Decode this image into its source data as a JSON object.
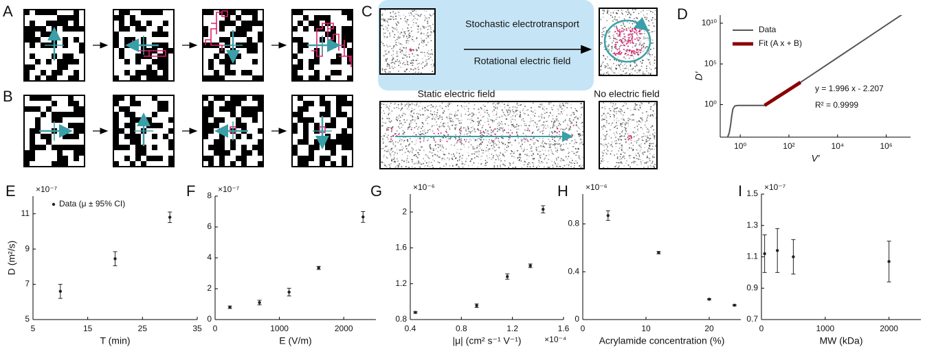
{
  "schematic": {
    "panels": [
      "A",
      "B",
      "C"
    ],
    "top_text": "Stochastic electrotransport",
    "arrow_text": "Rotational electric field",
    "static_text": "Static electric field",
    "none_text": "No electric field"
  },
  "chart_data": [
    {
      "type": "line",
      "label": "D",
      "xlabel": "V′",
      "ylabel": "D′",
      "xscale": "log",
      "yscale": "log",
      "xlim": [
        0.15,
        10000000
      ],
      "ylim": [
        0.0001,
        100000000000
      ],
      "xticks": [
        {
          "value": 1,
          "label": "10⁰"
        },
        {
          "value": 100,
          "label": "10²"
        },
        {
          "value": 10000,
          "label": "10⁴"
        },
        {
          "value": 1000000,
          "label": "10⁶"
        }
      ],
      "yticks": [
        {
          "value": 1,
          "label": "10⁰"
        },
        {
          "value": 100000,
          "label": "10⁵"
        },
        {
          "value": 10000000000,
          "label": "10¹⁰"
        }
      ],
      "legend": "upper left",
      "series": [
        {
          "name": "Data",
          "color": "#555555",
          "x": [
            0.3,
            0.35,
            0.4,
            0.45,
            0.5,
            0.6,
            0.8,
            1,
            2,
            5,
            10,
            30,
            100,
            1000,
            10000,
            100000,
            1000000,
            10000000
          ],
          "values": [
            0.0001,
            0.0003,
            0.003,
            0.05,
            0.3,
            0.7,
            0.8,
            0.8,
            0.8,
            0.8,
            0.8,
            10,
            61,
            6000,
            600000,
            59000000,
            5900000000,
            590000000000
          ]
        },
        {
          "name": "Fit (A x + B)",
          "color": "#8b0000",
          "x": [
            10,
            300
          ],
          "values": [
            0.8,
            550
          ]
        }
      ],
      "annotations": [
        "y = 1.996 x - 2.207",
        "R² = 0.9999"
      ]
    },
    {
      "type": "scatter",
      "label": "E",
      "xlabel": "T (min)",
      "ylabel": "D (m²/s)",
      "ymultiplier": "×10⁻⁷",
      "xlim": [
        5,
        35
      ],
      "ylim": [
        5,
        12
      ],
      "xticks": [
        5,
        15,
        25,
        35
      ],
      "yticks": [
        5,
        7,
        9,
        11
      ],
      "legend": "upper left",
      "series": [
        {
          "name": "Data (μ ± 95% CI)",
          "color": "#222222",
          "x": [
            10,
            20,
            30
          ],
          "values": [
            6.6,
            8.45,
            10.8
          ],
          "errors": [
            0.4,
            0.4,
            0.3
          ]
        }
      ]
    },
    {
      "type": "scatter",
      "label": "F",
      "xlabel": "E (V/m)",
      "ymultiplier": "×10⁻⁷",
      "xlim": [
        0,
        2500
      ],
      "ylim": [
        0,
        8
      ],
      "xticks": [
        0,
        1000,
        2000
      ],
      "yticks": [
        0,
        2,
        4,
        6,
        8
      ],
      "series": [
        {
          "color": "#222222",
          "x": [
            230,
            690,
            1150,
            1610,
            2300
          ],
          "values": [
            0.8,
            1.1,
            1.78,
            3.35,
            6.65
          ],
          "errors": [
            0.08,
            0.15,
            0.25,
            0.1,
            0.35
          ]
        }
      ]
    },
    {
      "type": "scatter",
      "label": "G",
      "xlabel": "|μ| (cm² s⁻¹ V⁻¹)",
      "ymultiplier": "×10⁻⁶",
      "xmultiplier": "×10⁻⁴",
      "xlim": [
        0.4,
        1.6
      ],
      "ylim": [
        0.8,
        2.2
      ],
      "xticks": [
        0.4,
        0.8,
        1.2,
        1.6
      ],
      "yticks": [
        0.8,
        1.2,
        1.6,
        2
      ],
      "series": [
        {
          "color": "#222222",
          "x": [
            0.44,
            0.92,
            1.16,
            1.34,
            1.44
          ],
          "values": [
            0.88,
            0.955,
            1.28,
            1.4,
            2.03
          ],
          "errors": [
            0.01,
            0.02,
            0.03,
            0.02,
            0.04
          ]
        }
      ]
    },
    {
      "type": "scatter",
      "label": "H",
      "xlabel": "Acrylamide concentration (%)",
      "ymultiplier": "×10⁻⁶",
      "xlim": [
        0,
        25
      ],
      "ylim": [
        0,
        1.05
      ],
      "xticks": [
        0,
        10,
        20
      ],
      "yticks": [
        0,
        0.4,
        0.8
      ],
      "series": [
        {
          "color": "#222222",
          "x": [
            4,
            12,
            20,
            24
          ],
          "values": [
            0.87,
            0.56,
            0.17,
            0.12
          ],
          "errors": [
            0.04,
            0.01,
            0.005,
            0.005
          ]
        }
      ]
    },
    {
      "type": "scatter",
      "label": "I",
      "xlabel": "MW (kDa)",
      "ymultiplier": "×10⁻⁷",
      "xlim": [
        0,
        2500
      ],
      "ylim": [
        0.7,
        1.5
      ],
      "xticks": [
        0,
        1000,
        2000
      ],
      "yticks": [
        0.7,
        0.9,
        1.1,
        1.3,
        1.5
      ],
      "series": [
        {
          "color": "#222222",
          "x": [
            50,
            250,
            500,
            2000
          ],
          "values": [
            1.12,
            1.14,
            1.1,
            1.07
          ],
          "errors": [
            0.12,
            0.14,
            0.11,
            0.13
          ]
        }
      ]
    }
  ]
}
